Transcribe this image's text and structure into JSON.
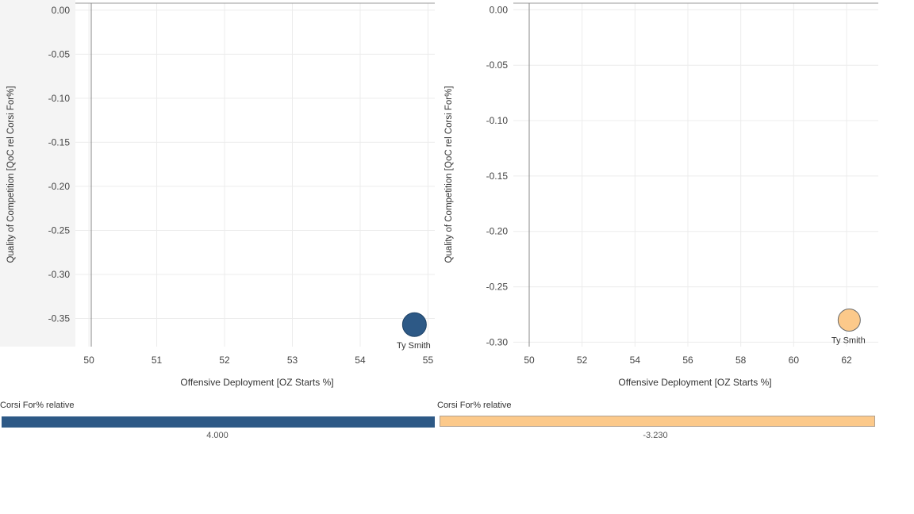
{
  "chart_data": [
    {
      "type": "scatter",
      "xlabel": "Offensive Deployment [OZ Starts %]",
      "ylabel": "Quality of Competition [QoC rel Corsi For%]",
      "x_ticks": [
        50,
        51,
        52,
        53,
        54,
        55
      ],
      "y_ticks": [
        0.0,
        -0.05,
        -0.1,
        -0.15,
        -0.2,
        -0.25,
        -0.3,
        -0.35
      ],
      "y_tick_labels": [
        "0.00",
        "-0.05",
        "-0.10",
        "-0.15",
        "-0.20",
        "-0.25",
        "-0.30",
        "-0.35"
      ],
      "xlim": [
        49.8,
        55.1
      ],
      "ylim": [
        -0.382,
        0.008
      ],
      "grid": true,
      "points": [
        {
          "label": "Ty Smith",
          "x": 54.8,
          "y": -0.357,
          "color": "#2d5986"
        }
      ],
      "legend": {
        "title": "Corsi For% relative",
        "value": "4.000",
        "color": "#2d5986"
      }
    },
    {
      "type": "scatter",
      "xlabel": "Offensive Deployment [OZ Starts %]",
      "ylabel": "Quality of Competition [QoC rel Corsi For%]",
      "x_ticks": [
        50,
        52,
        54,
        56,
        58,
        60,
        62
      ],
      "y_ticks": [
        0.0,
        -0.05,
        -0.1,
        -0.15,
        -0.2,
        -0.25,
        -0.3
      ],
      "y_tick_labels": [
        "0.00",
        "-0.05",
        "-0.10",
        "-0.15",
        "-0.20",
        "-0.25",
        "-0.30"
      ],
      "xlim": [
        49.4,
        63.2
      ],
      "ylim": [
        -0.304,
        0.006
      ],
      "grid": true,
      "points": [
        {
          "label": "Ty Smith",
          "x": 62.1,
          "y": -0.28,
          "color": "#fcc98a"
        }
      ],
      "legend": {
        "title": "Corsi For% relative",
        "value": "-3.230",
        "color": "#fcc98a"
      }
    }
  ]
}
